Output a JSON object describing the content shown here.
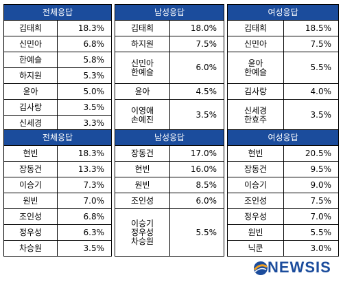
{
  "table1": {
    "headers": [
      "전체응답",
      "남성응답",
      "여성응답"
    ],
    "total": [
      {
        "name": "김태희",
        "value": "18.3%"
      },
      {
        "name": "신민아",
        "value": "6.8%"
      },
      {
        "name": "한예슬",
        "value": "5.8%"
      },
      {
        "name": "하지원",
        "value": "5.3%"
      },
      {
        "name": "윤아",
        "value": "5.0%"
      },
      {
        "name": "김사랑",
        "value": "3.5%"
      },
      {
        "name": "신세경",
        "value": "3.3%"
      }
    ],
    "male": [
      {
        "name": "김태희",
        "value": "18.0%"
      },
      {
        "name": "하지원",
        "value": "7.5%"
      },
      {
        "name1": "신민아",
        "name2": "한예슬",
        "value": "6.0%"
      },
      {
        "name": "윤아",
        "value": "4.5%"
      },
      {
        "name1": "이영애",
        "name2": "손예진",
        "value": "3.5%"
      }
    ],
    "female": [
      {
        "name": "김태희",
        "value": "18.5%"
      },
      {
        "name": "신민아",
        "value": "7.5%"
      },
      {
        "name1": "윤아",
        "name2": "한예슬",
        "value": "5.5%"
      },
      {
        "name": "김사랑",
        "value": "4.0%"
      },
      {
        "name1": "신세경",
        "name2": "한효주",
        "value": "3.5%"
      }
    ]
  },
  "table2": {
    "headers": [
      "전체응답",
      "남성응답",
      "여성응답"
    ],
    "total": [
      {
        "name": "현빈",
        "value": "18.3%"
      },
      {
        "name": "장동건",
        "value": "13.3%"
      },
      {
        "name": "이승기",
        "value": "7.3%"
      },
      {
        "name": "원빈",
        "value": "7.0%"
      },
      {
        "name": "조인성",
        "value": "6.8%"
      },
      {
        "name": "정우성",
        "value": "6.3%"
      },
      {
        "name": "차승원",
        "value": "3.5%"
      }
    ],
    "male": [
      {
        "name": "장동건",
        "value": "17.0%"
      },
      {
        "name": "현빈",
        "value": "16.0%"
      },
      {
        "name": "원빈",
        "value": "8.5%"
      },
      {
        "name": "조인성",
        "value": "6.0%"
      },
      {
        "name1": "이승기",
        "name2": "정우성",
        "name3": "차승원",
        "value": "5.5%"
      }
    ],
    "female": [
      {
        "name": "현빈",
        "value": "20.5%"
      },
      {
        "name": "장동건",
        "value": "9.5%"
      },
      {
        "name": "이승기",
        "value": "9.0%"
      },
      {
        "name": "조인성",
        "value": "7.5%"
      },
      {
        "name": "정우성",
        "value": "7.0%"
      },
      {
        "name": "원빈",
        "value": "5.5%"
      },
      {
        "name": "닉쿤",
        "value": "3.0%"
      }
    ]
  },
  "logo": {
    "text": "NEWSIS",
    "color": "#1b4c9c",
    "accent": "#f0a020"
  },
  "header_color": "#1b4c9c"
}
